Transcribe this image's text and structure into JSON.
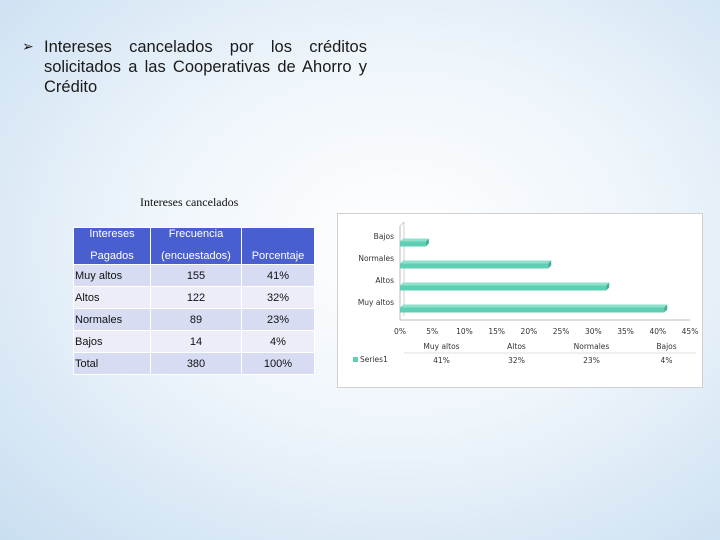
{
  "slide": {
    "title": "Intereses cancelados por los créditos solicitados a las Cooperativas de Ahorro y Crédito",
    "subtitle": "Intereses cancelados"
  },
  "table": {
    "headers": {
      "col1_line1": "Intereses",
      "col1_line2": "Pagados",
      "col2_line1": "Frecuencia",
      "col2_line2": "(encuestados)",
      "col3": "Porcentaje"
    },
    "rows": [
      {
        "label": "Muy altos",
        "freq": "155",
        "pct": "41%"
      },
      {
        "label": "Altos",
        "freq": "122",
        "pct": "32%"
      },
      {
        "label": "Normales",
        "freq": "89",
        "pct": "23%"
      },
      {
        "label": "Bajos",
        "freq": "14",
        "pct": "4%"
      },
      {
        "label": "Total",
        "freq": "380",
        "pct": "100%"
      }
    ]
  },
  "chart_data": {
    "type": "bar",
    "orientation": "horizontal",
    "categories": [
      "Bajos",
      "Normales",
      "Altos",
      "Muy altos"
    ],
    "series": [
      {
        "name": "Series1",
        "values": [
          4,
          23,
          32,
          41
        ]
      }
    ],
    "xlim": [
      0,
      45
    ],
    "xticks": [
      "0%",
      "5%",
      "10%",
      "15%",
      "20%",
      "25%",
      "30%",
      "35%",
      "40%",
      "45%"
    ],
    "data_table": {
      "columns": [
        "Muy altos",
        "Altos",
        "Normales",
        "Bajos"
      ],
      "values": [
        "41%",
        "32%",
        "23%",
        "4%"
      ]
    },
    "bar_color": "#5ecfb3"
  }
}
